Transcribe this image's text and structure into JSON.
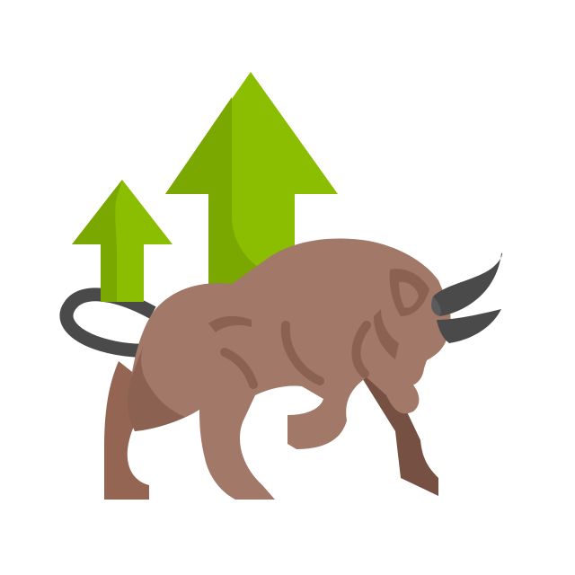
{
  "icon": {
    "name": "bull-market-icon",
    "description_name": "bull-with-rising-arrows-icon"
  },
  "colors": {
    "background": "#ffffff",
    "arrow_light": "#8bbd00",
    "arrow_dark": "#7aa800",
    "bull_body": "#a27868",
    "bull_shadow": "#8b6152",
    "bull_dark": "#765043",
    "bull_rear_leg": "#946553",
    "horn": "#4a4a4a",
    "horn_light": "#5b5b5b",
    "tail": "#4a4a4a"
  }
}
